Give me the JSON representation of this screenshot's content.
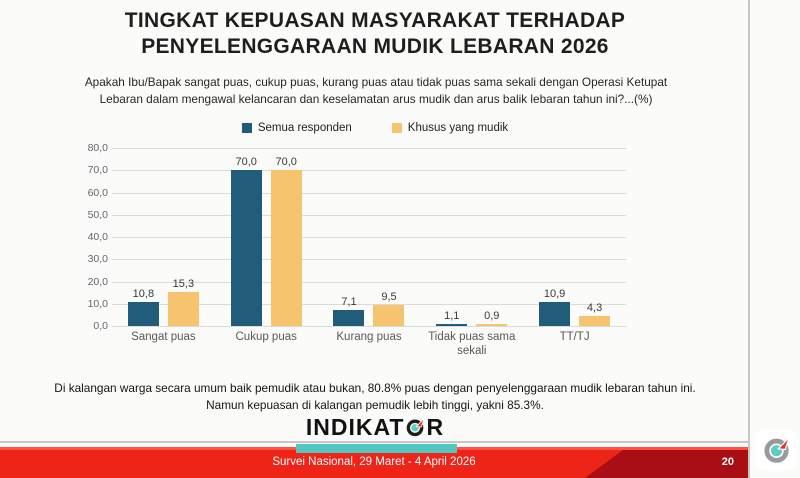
{
  "slide": {
    "title_line1": "TINGKAT KEPUASAN MASYARAKAT TERHADAP",
    "title_line2": "PENYELENGGARAAN MUDIK LEBARAN 2026",
    "question_line1": "Apakah Ibu/Bapak sangat puas, cukup puas, kurang puas atau tidak puas sama sekali dengan Operasi Ketupat",
    "question_line2": "Lebaran dalam mengawal kelancaran dan keselamatan arus mudik dan arus balik lebaran tahun ini?...(%)",
    "note_line1": "Di kalangan warga secara umum baik pemudik atau bukan, 80.8% puas dengan penyelenggaraan mudik lebaran tahun ini.",
    "note_line2": "Namun kepuasan di kalangan pemudik lebih tinggi, yakni 85.3%."
  },
  "chart_data": {
    "type": "bar",
    "categories": [
      "Sangat puas",
      "Cukup puas",
      "Kurang puas",
      "Tidak puas sama sekali",
      "TT/TJ"
    ],
    "series": [
      {
        "name": "Semua responden",
        "color": "#215d7a",
        "values": [
          10.8,
          70.0,
          7.1,
          1.1,
          10.9
        ],
        "labels": [
          "10,8",
          "70,0",
          "7,1",
          "1,1",
          "10,9"
        ]
      },
      {
        "name": "Khusus yang mudik",
        "color": "#f6c46e",
        "values": [
          15.3,
          70.0,
          9.5,
          0.9,
          4.3
        ],
        "labels": [
          "15,3",
          "70,0",
          "9,5",
          "0,9",
          "4,3"
        ]
      }
    ],
    "ylim": [
      0,
      80
    ],
    "ytick_step": 10,
    "ytick_labels_top_to_bottom": [
      "80,0",
      "70,0",
      "60,0",
      "50,0",
      "40,0",
      "30,0",
      "20,0",
      "10,0",
      "0,0"
    ],
    "grid": true,
    "legend_position": "top-center",
    "title": "TINGKAT KEPUASAN MASYARAKAT TERHADAP PENYELENGGARAAN MUDIK LEBARAN 2026"
  },
  "logo": {
    "text_left": "INDIKAT",
    "text_right": "R",
    "compass_icon": "compass-arrow-northeast"
  },
  "footer": {
    "survey_label": "Survei Nasional, 29 Maret - 4 April 2026",
    "page_number": "20"
  },
  "colors": {
    "bar_all_respondents": "#215d7a",
    "bar_mudik_only": "#f6c46e",
    "footer_red": "#ee2418",
    "footer_dark_red": "#a80e13",
    "teal_accent": "#52c6c0",
    "compass_teal": "#5fccc4",
    "compass_arrow_red": "#e03428",
    "gridline": "#dadad7"
  }
}
